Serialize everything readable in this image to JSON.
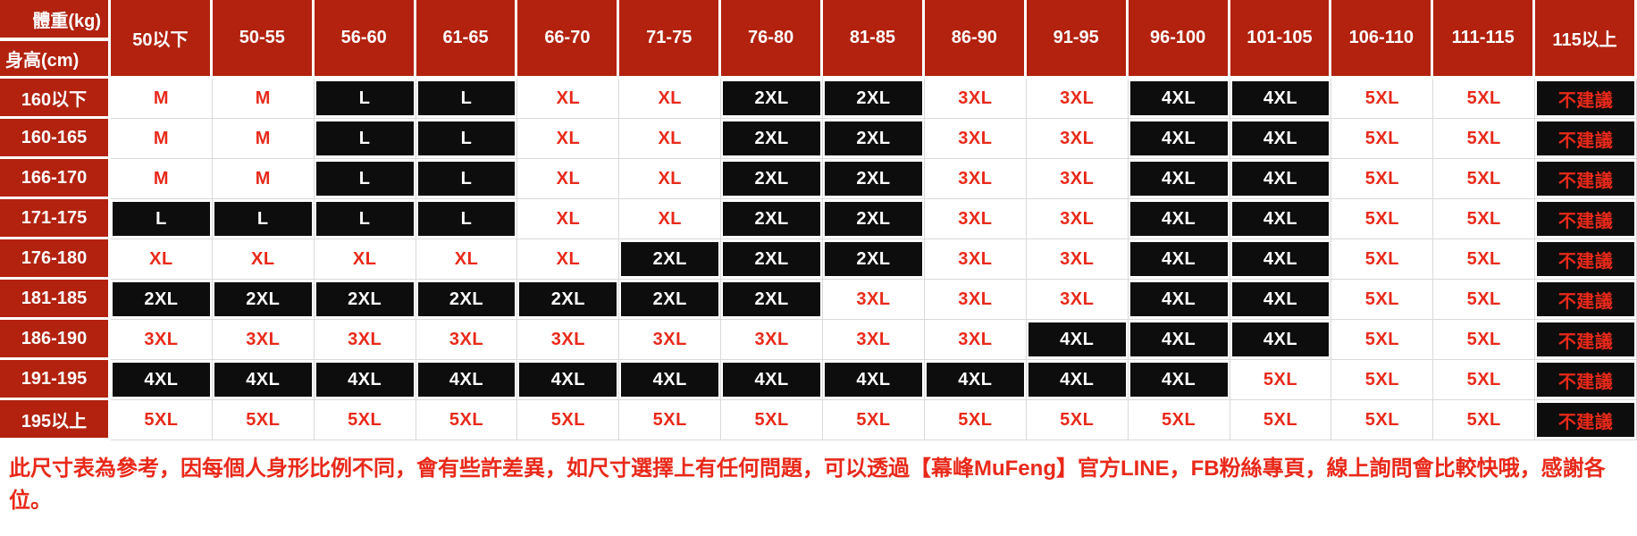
{
  "colors": {
    "header_red": "#B2220E",
    "accent_red": "#E8291A",
    "cell_black": "#0D0D0D",
    "gridline": "#D9D9D9"
  },
  "chart_data": {
    "type": "table",
    "corner": {
      "weight_label": "體重(kg)",
      "height_label": "身高(cm)"
    },
    "columns": [
      "50以下",
      "50-55",
      "56-60",
      "61-65",
      "66-70",
      "71-75",
      "76-80",
      "81-85",
      "86-90",
      "91-95",
      "96-100",
      "101-105",
      "106-110",
      "111-115",
      "115以上"
    ],
    "variants": {
      "w": "white-bg-red-text",
      "b": "black-bg-white-text",
      "n": "not-recommended-black-bg-red-text"
    },
    "rows": [
      {
        "label": "160以下",
        "cells": [
          [
            "M",
            "w"
          ],
          [
            "M",
            "w"
          ],
          [
            "L",
            "b"
          ],
          [
            "L",
            "b"
          ],
          [
            "XL",
            "w"
          ],
          [
            "XL",
            "w"
          ],
          [
            "2XL",
            "b"
          ],
          [
            "2XL",
            "b"
          ],
          [
            "3XL",
            "w"
          ],
          [
            "3XL",
            "w"
          ],
          [
            "4XL",
            "b"
          ],
          [
            "4XL",
            "b"
          ],
          [
            "5XL",
            "w"
          ],
          [
            "5XL",
            "w"
          ],
          [
            "不建議",
            "n"
          ]
        ]
      },
      {
        "label": "160-165",
        "cells": [
          [
            "M",
            "w"
          ],
          [
            "M",
            "w"
          ],
          [
            "L",
            "b"
          ],
          [
            "L",
            "b"
          ],
          [
            "XL",
            "w"
          ],
          [
            "XL",
            "w"
          ],
          [
            "2XL",
            "b"
          ],
          [
            "2XL",
            "b"
          ],
          [
            "3XL",
            "w"
          ],
          [
            "3XL",
            "w"
          ],
          [
            "4XL",
            "b"
          ],
          [
            "4XL",
            "b"
          ],
          [
            "5XL",
            "w"
          ],
          [
            "5XL",
            "w"
          ],
          [
            "不建議",
            "n"
          ]
        ]
      },
      {
        "label": "166-170",
        "cells": [
          [
            "M",
            "w"
          ],
          [
            "M",
            "w"
          ],
          [
            "L",
            "b"
          ],
          [
            "L",
            "b"
          ],
          [
            "XL",
            "w"
          ],
          [
            "XL",
            "w"
          ],
          [
            "2XL",
            "b"
          ],
          [
            "2XL",
            "b"
          ],
          [
            "3XL",
            "w"
          ],
          [
            "3XL",
            "w"
          ],
          [
            "4XL",
            "b"
          ],
          [
            "4XL",
            "b"
          ],
          [
            "5XL",
            "w"
          ],
          [
            "5XL",
            "w"
          ],
          [
            "不建議",
            "n"
          ]
        ]
      },
      {
        "label": "171-175",
        "cells": [
          [
            "L",
            "b"
          ],
          [
            "L",
            "b"
          ],
          [
            "L",
            "b"
          ],
          [
            "L",
            "b"
          ],
          [
            "XL",
            "w"
          ],
          [
            "XL",
            "w"
          ],
          [
            "2XL",
            "b"
          ],
          [
            "2XL",
            "b"
          ],
          [
            "3XL",
            "w"
          ],
          [
            "3XL",
            "w"
          ],
          [
            "4XL",
            "b"
          ],
          [
            "4XL",
            "b"
          ],
          [
            "5XL",
            "w"
          ],
          [
            "5XL",
            "w"
          ],
          [
            "不建議",
            "n"
          ]
        ]
      },
      {
        "label": "176-180",
        "cells": [
          [
            "XL",
            "w"
          ],
          [
            "XL",
            "w"
          ],
          [
            "XL",
            "w"
          ],
          [
            "XL",
            "w"
          ],
          [
            "XL",
            "w"
          ],
          [
            "2XL",
            "b"
          ],
          [
            "2XL",
            "b"
          ],
          [
            "2XL",
            "b"
          ],
          [
            "3XL",
            "w"
          ],
          [
            "3XL",
            "w"
          ],
          [
            "4XL",
            "b"
          ],
          [
            "4XL",
            "b"
          ],
          [
            "5XL",
            "w"
          ],
          [
            "5XL",
            "w"
          ],
          [
            "不建議",
            "n"
          ]
        ]
      },
      {
        "label": "181-185",
        "cells": [
          [
            "2XL",
            "b"
          ],
          [
            "2XL",
            "b"
          ],
          [
            "2XL",
            "b"
          ],
          [
            "2XL",
            "b"
          ],
          [
            "2XL",
            "b"
          ],
          [
            "2XL",
            "b"
          ],
          [
            "2XL",
            "b"
          ],
          [
            "3XL",
            "w"
          ],
          [
            "3XL",
            "w"
          ],
          [
            "3XL",
            "w"
          ],
          [
            "4XL",
            "b"
          ],
          [
            "4XL",
            "b"
          ],
          [
            "5XL",
            "w"
          ],
          [
            "5XL",
            "w"
          ],
          [
            "不建議",
            "n"
          ]
        ]
      },
      {
        "label": "186-190",
        "cells": [
          [
            "3XL",
            "w"
          ],
          [
            "3XL",
            "w"
          ],
          [
            "3XL",
            "w"
          ],
          [
            "3XL",
            "w"
          ],
          [
            "3XL",
            "w"
          ],
          [
            "3XL",
            "w"
          ],
          [
            "3XL",
            "w"
          ],
          [
            "3XL",
            "w"
          ],
          [
            "3XL",
            "w"
          ],
          [
            "4XL",
            "b"
          ],
          [
            "4XL",
            "b"
          ],
          [
            "4XL",
            "b"
          ],
          [
            "5XL",
            "w"
          ],
          [
            "5XL",
            "w"
          ],
          [
            "不建議",
            "n"
          ]
        ]
      },
      {
        "label": "191-195",
        "cells": [
          [
            "4XL",
            "b"
          ],
          [
            "4XL",
            "b"
          ],
          [
            "4XL",
            "b"
          ],
          [
            "4XL",
            "b"
          ],
          [
            "4XL",
            "b"
          ],
          [
            "4XL",
            "b"
          ],
          [
            "4XL",
            "b"
          ],
          [
            "4XL",
            "b"
          ],
          [
            "4XL",
            "b"
          ],
          [
            "4XL",
            "b"
          ],
          [
            "4XL",
            "b"
          ],
          [
            "5XL",
            "w"
          ],
          [
            "5XL",
            "w"
          ],
          [
            "5XL",
            "w"
          ],
          [
            "不建議",
            "n"
          ]
        ]
      },
      {
        "label": "195以上",
        "cells": [
          [
            "5XL",
            "w"
          ],
          [
            "5XL",
            "w"
          ],
          [
            "5XL",
            "w"
          ],
          [
            "5XL",
            "w"
          ],
          [
            "5XL",
            "w"
          ],
          [
            "5XL",
            "w"
          ],
          [
            "5XL",
            "w"
          ],
          [
            "5XL",
            "w"
          ],
          [
            "5XL",
            "w"
          ],
          [
            "5XL",
            "w"
          ],
          [
            "5XL",
            "w"
          ],
          [
            "5XL",
            "w"
          ],
          [
            "5XL",
            "w"
          ],
          [
            "5XL",
            "w"
          ],
          [
            "不建議",
            "n"
          ]
        ]
      }
    ]
  },
  "note": "此尺寸表為參考，因每個人身形比例不同，會有些許差異，如尺寸選擇上有任何問題，可以透過【幕峰MuFeng】官方LINE，FB粉絲專頁，線上詢問會比較快哦，感謝各位。"
}
